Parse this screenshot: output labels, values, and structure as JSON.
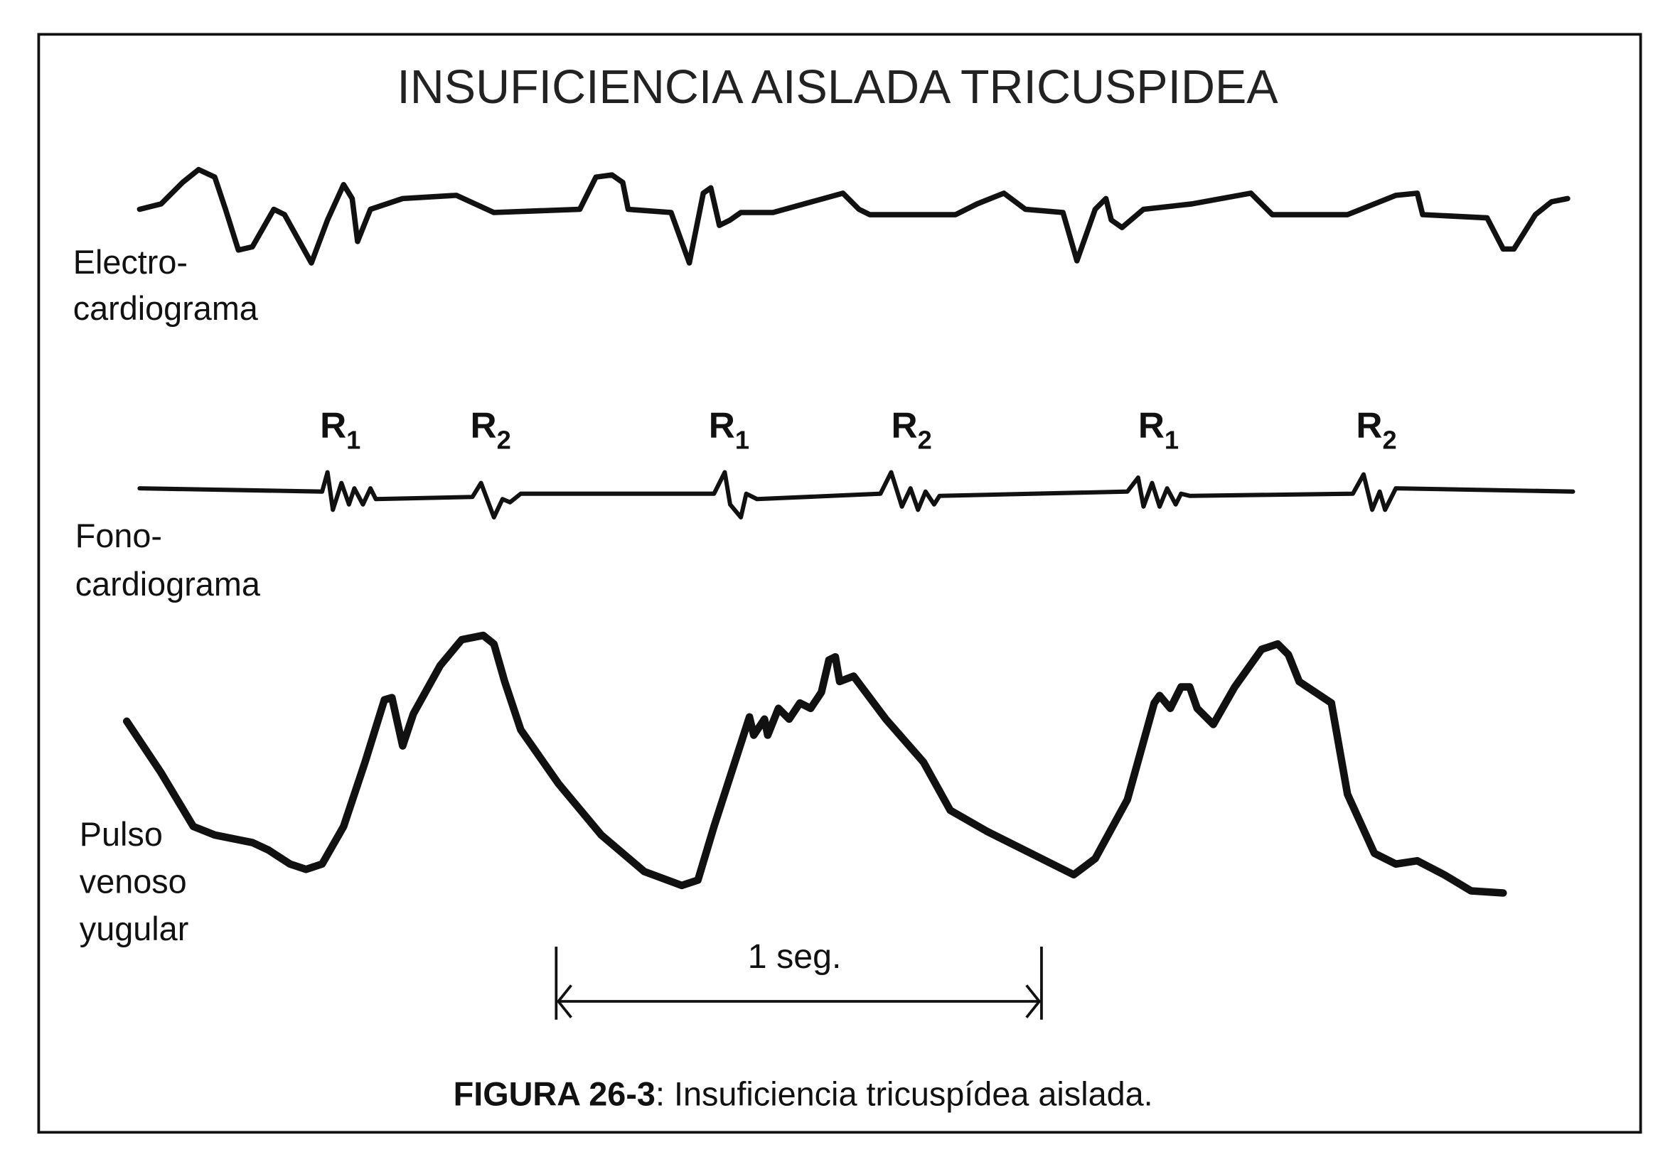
{
  "title": "INSUFICIENCIA AISLADA TRICUSPIDEA",
  "labels": {
    "ecg": [
      "Electro-",
      "cardiograma"
    ],
    "phono": [
      "Fono-",
      "cardiograma"
    ],
    "jvp": [
      "Pulso",
      "venoso",
      "yugular"
    ]
  },
  "sounds": [
    {
      "letter": "R",
      "sub": "1"
    },
    {
      "letter": "R",
      "sub": "2"
    },
    {
      "letter": "R",
      "sub": "1"
    },
    {
      "letter": "R",
      "sub": "2"
    },
    {
      "letter": "R",
      "sub": "1"
    },
    {
      "letter": "R",
      "sub": "2"
    }
  ],
  "scale": "1 seg.",
  "caption": {
    "figure": "FIGURA 26-3",
    "text": ": Insuficiencia tricuspídea aislada."
  }
}
